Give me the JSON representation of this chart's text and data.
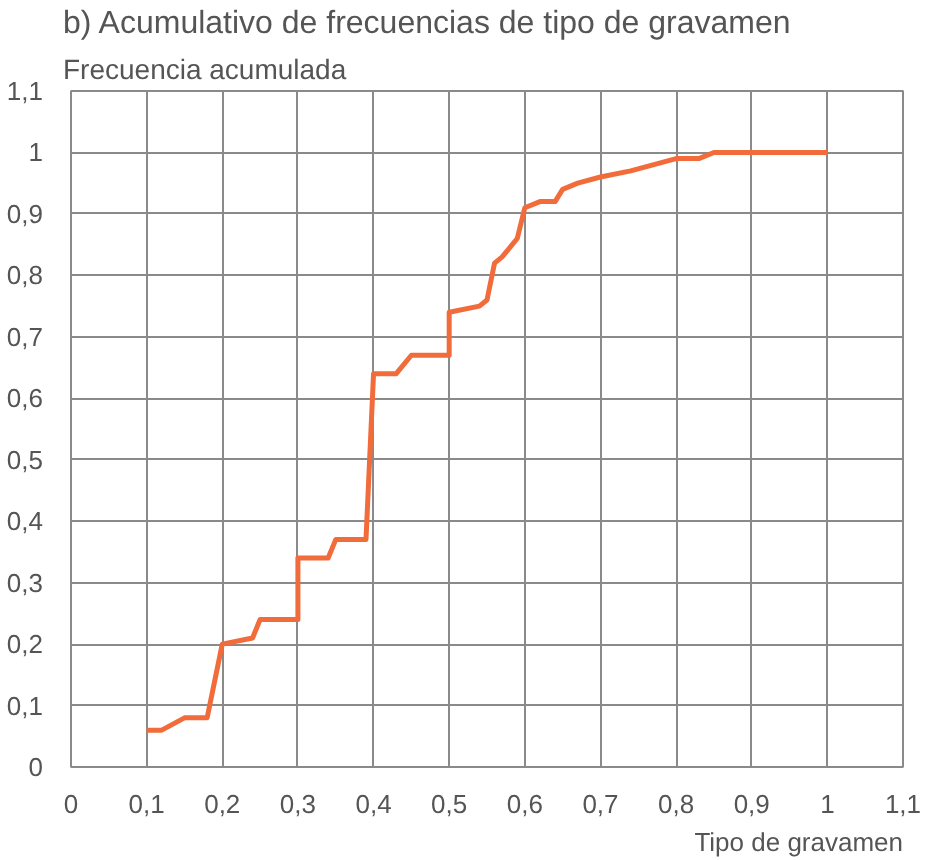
{
  "chart_data": {
    "type": "line",
    "title": "b) Acumulativo de frecuencias de tipo de gravamen",
    "ylabel": "Frecuencia acumulada",
    "xlabel": "Tipo de gravamen",
    "x": [
      0.1,
      0.12,
      0.15,
      0.18,
      0.2,
      0.24,
      0.25,
      0.3,
      0.3,
      0.34,
      0.35,
      0.39,
      0.4,
      0.43,
      0.45,
      0.5,
      0.5,
      0.54,
      0.55,
      0.56,
      0.57,
      0.59,
      0.6,
      0.62,
      0.64,
      0.65,
      0.67,
      0.7,
      0.74,
      0.8,
      0.83,
      0.85,
      1.0
    ],
    "series": [
      {
        "color": "#f26b3a",
        "values": [
          0.06,
          0.06,
          0.08,
          0.08,
          0.2,
          0.21,
          0.24,
          0.24,
          0.34,
          0.34,
          0.37,
          0.37,
          0.64,
          0.64,
          0.67,
          0.67,
          0.74,
          0.75,
          0.76,
          0.82,
          0.83,
          0.86,
          0.91,
          0.92,
          0.92,
          0.94,
          0.95,
          0.96,
          0.97,
          0.99,
          0.99,
          1.0,
          1.0
        ]
      }
    ],
    "xlim": [
      0,
      1.1
    ],
    "ylim": [
      0,
      1.1
    ],
    "xticks": [
      0,
      {
        "value": 0.1,
        "label": "0,1"
      },
      {
        "value": 0.2,
        "label": "0,2"
      },
      {
        "value": 0.3,
        "label": "0,3"
      },
      {
        "value": 0.4,
        "label": "0,4"
      },
      {
        "value": 0.5,
        "label": "0,5"
      },
      {
        "value": 0.6,
        "label": "0,6"
      },
      {
        "value": 0.7,
        "label": "0,7"
      },
      {
        "value": 0.8,
        "label": "0,8"
      },
      {
        "value": 0.9,
        "label": "0,9"
      },
      1,
      {
        "value": 1.1,
        "label": "1,1"
      }
    ],
    "yticks": [
      0,
      {
        "value": 0.1,
        "label": "0,1"
      },
      {
        "value": 0.2,
        "label": "0,2"
      },
      {
        "value": 0.3,
        "label": "0,3"
      },
      {
        "value": 0.4,
        "label": "0,4"
      },
      {
        "value": 0.5,
        "label": "0,5"
      },
      {
        "value": 0.6,
        "label": "0,6"
      },
      {
        "value": 0.7,
        "label": "0,7"
      },
      {
        "value": 0.8,
        "label": "0,8"
      },
      {
        "value": 0.9,
        "label": "0,9"
      },
      1,
      {
        "value": 1.1,
        "label": "1,1"
      }
    ],
    "grid": true,
    "line_style": "solid"
  }
}
